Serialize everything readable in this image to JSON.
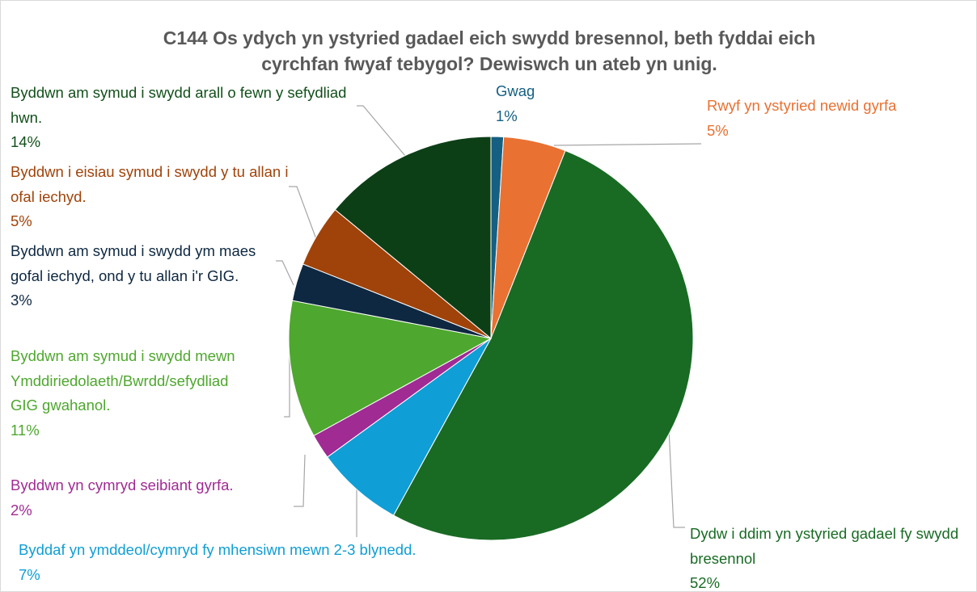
{
  "chart_data": {
    "type": "pie",
    "title": "C144 Os ydych yn ystyried gadael eich swydd bresennol, beth fyddai eich cyrchfan fwyaf tebygol? Dewiswch un ateb yn unig.",
    "categories": [
      "Gwag",
      "Rwyf yn ystyried newid gyrfa",
      "Dydw i ddim yn ystyried gadael fy swydd bresennol",
      "Byddaf yn ymddeol/cymryd fy mhensiwn mewn 2-3 blynedd.",
      "Byddwn yn cymryd seibiant gyrfa.",
      "Byddwn am symud i swydd mewn Ymddiriedolaeth/Bwrdd/sefydliad GIG gwahanol.",
      "Byddwn am symud i swydd ym maes gofal iechyd, ond y tu allan i'r GIG.",
      "Byddwn i eisiau symud i swydd y tu allan i ofal iechyd.",
      "Byddwn am symud i swydd arall o fewn y sefydliad hwn."
    ],
    "values": [
      1,
      5,
      52,
      7,
      2,
      11,
      3,
      5,
      14
    ],
    "value_labels": [
      "1%",
      "5%",
      "52%",
      "7%",
      "2%",
      "11%",
      "3%",
      "5%",
      "14%"
    ],
    "colors": [
      "#156082",
      "#e97132",
      "#196b24",
      "#0f9ed5",
      "#a02b93",
      "#4ea72e",
      "#0e2841",
      "#a0430a",
      "#0d3f17"
    ]
  }
}
